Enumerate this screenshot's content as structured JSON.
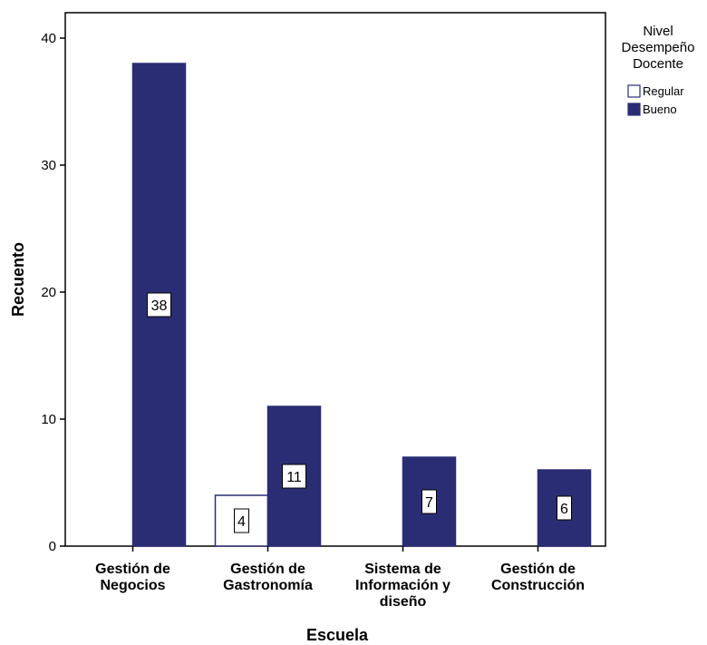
{
  "chart_data": {
    "type": "bar",
    "title": "",
    "xlabel": "Escuela",
    "ylabel": "Recuento",
    "ylim": [
      0,
      42
    ],
    "yticks": [
      "0",
      "10",
      "20",
      "30",
      "40"
    ],
    "categories": [
      [
        "Gestión de",
        "Negocios"
      ],
      [
        "Gestión de",
        "Gastronomía"
      ],
      [
        "Sistema de",
        "Información y",
        "diseño"
      ],
      [
        "Gestión de",
        "Construcción"
      ]
    ],
    "series": [
      {
        "name": "Regular",
        "values": [
          0,
          4,
          0,
          0
        ],
        "color": "#ffffff",
        "stroke": "#2b2d74"
      },
      {
        "name": "Bueno",
        "values": [
          38,
          11,
          7,
          6
        ],
        "color": "#2b2d74",
        "stroke": "#2b2d74"
      }
    ],
    "data_labels": [
      [
        null,
        "4",
        null,
        null
      ],
      [
        "38",
        "11",
        "7",
        "6"
      ]
    ],
    "legend": {
      "title": [
        "Nivel",
        "Desempeño",
        "Docente"
      ],
      "placement": "right"
    },
    "grid": false
  }
}
